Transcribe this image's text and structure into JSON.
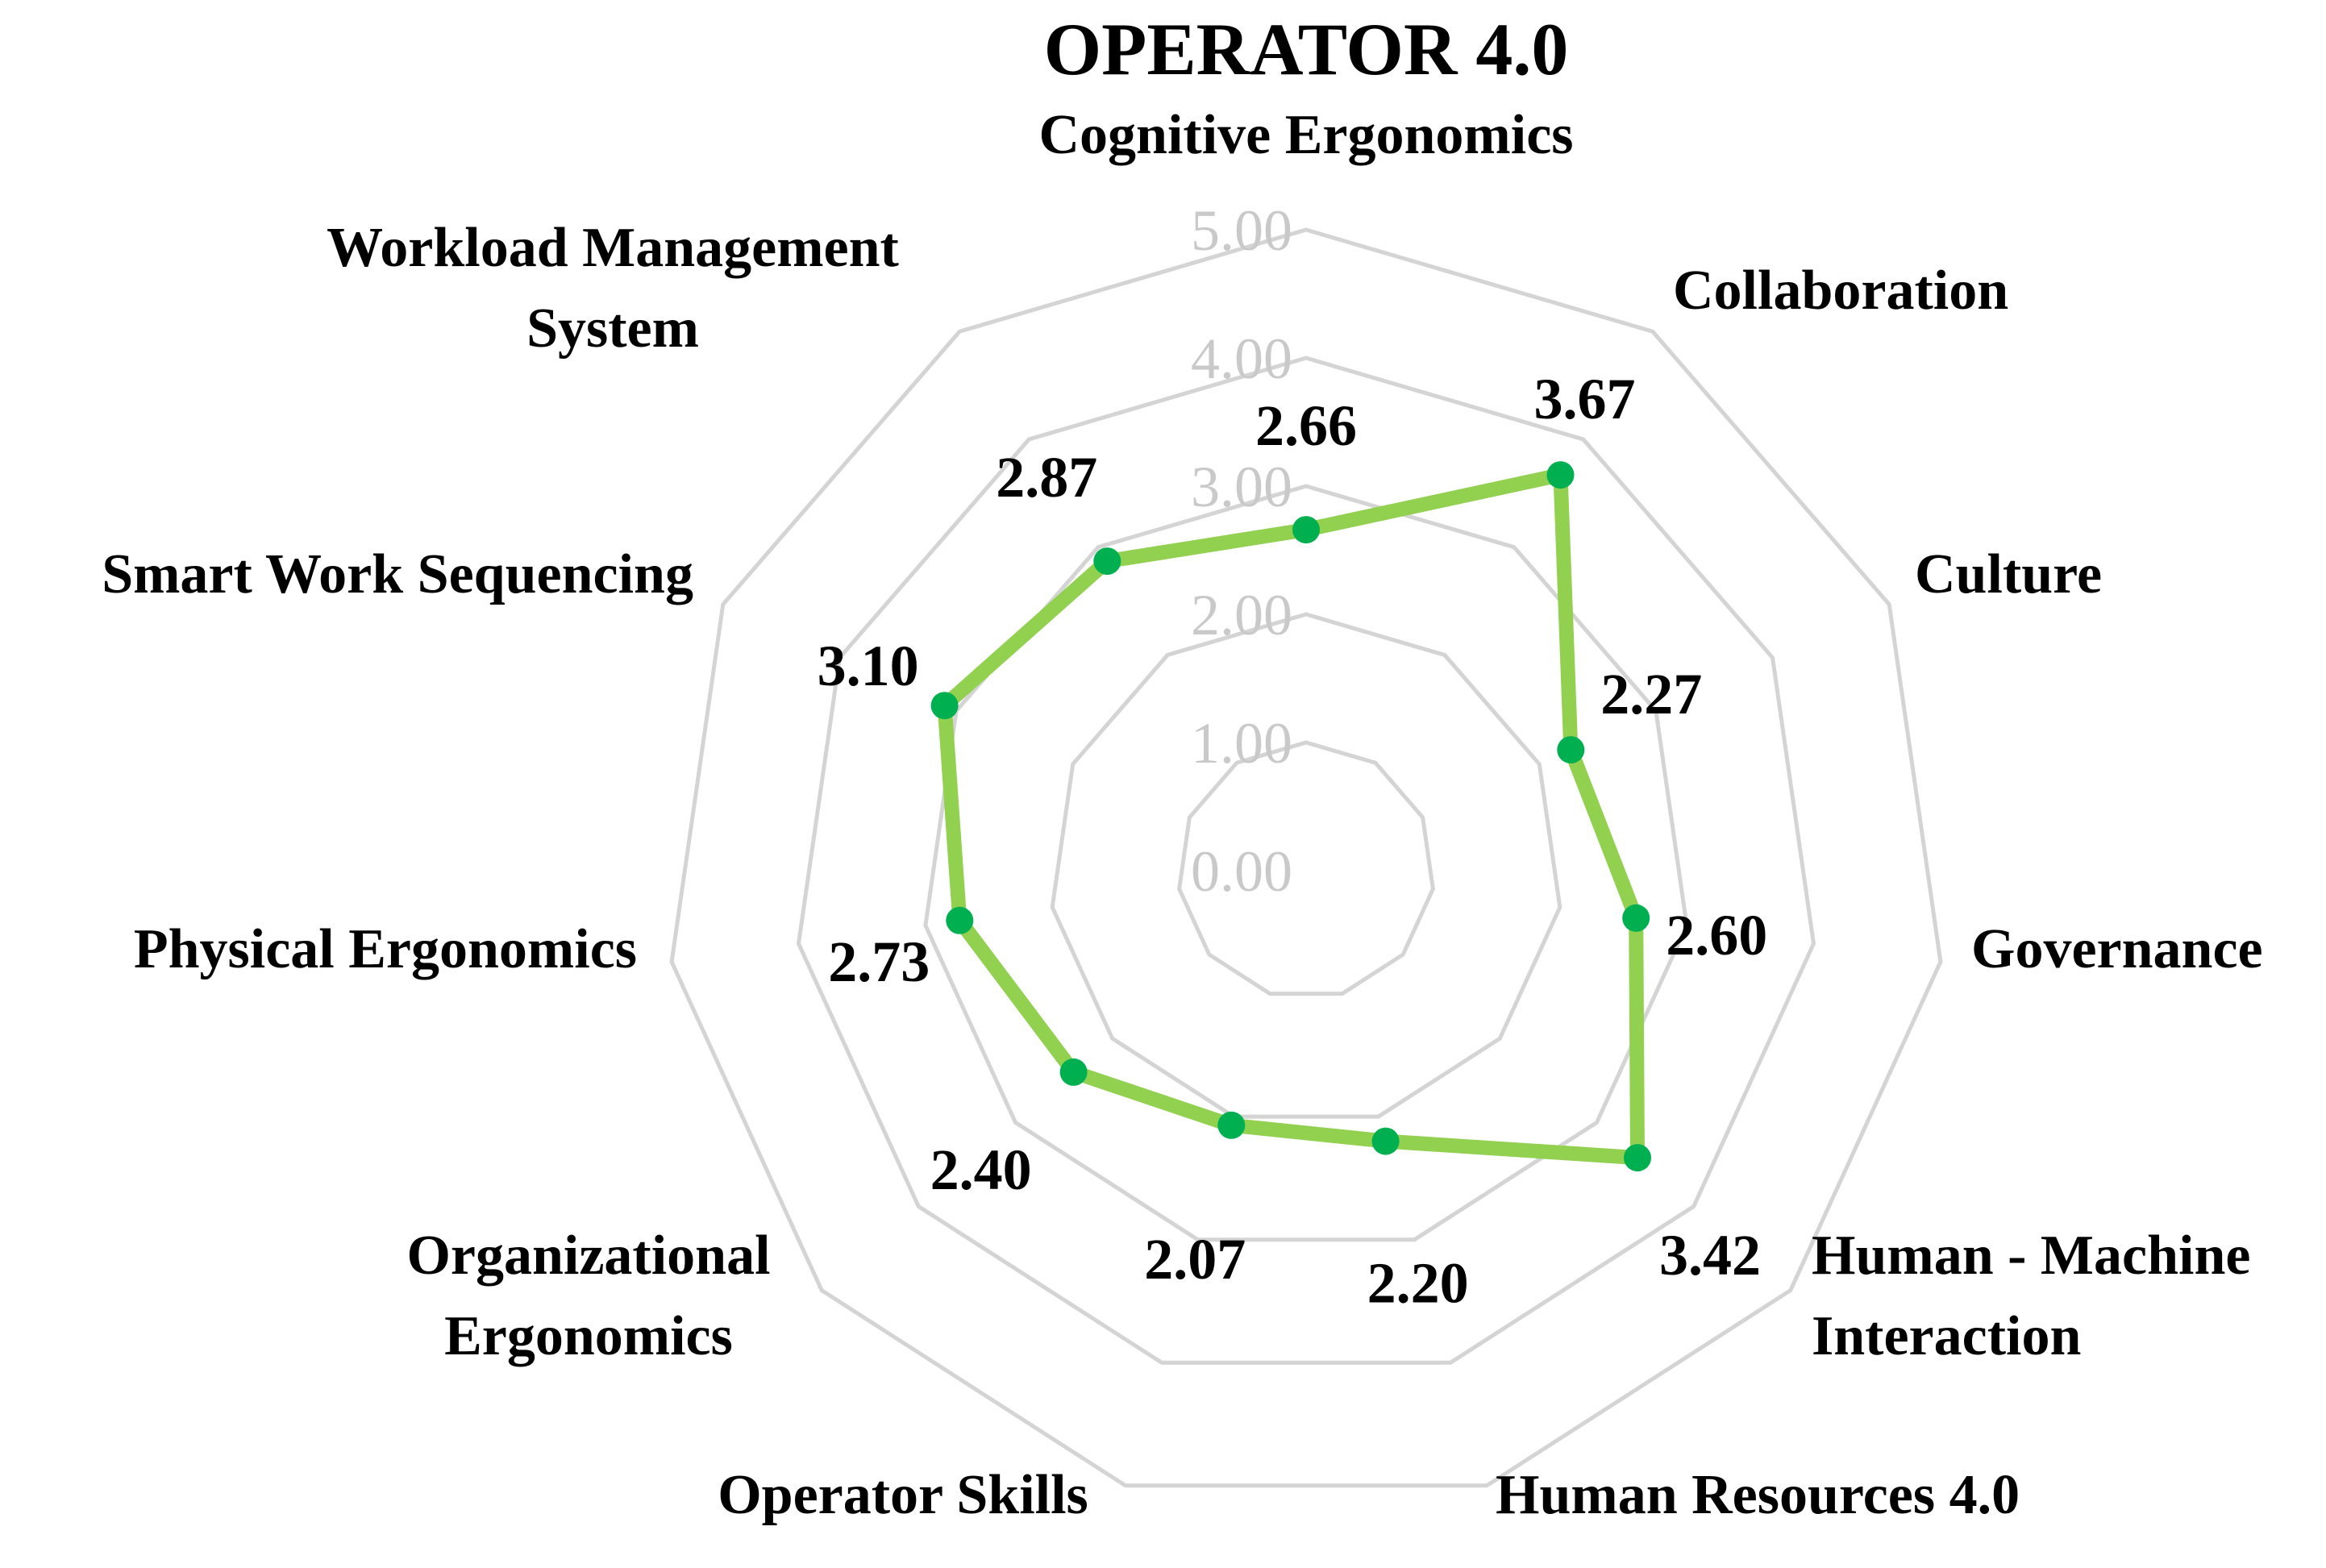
{
  "chart_data": {
    "type": "radar",
    "title": "OPERATOR 4.0",
    "categories": [
      [
        "Cognitive Ergonomics"
      ],
      [
        "Collaboration"
      ],
      [
        "Culture"
      ],
      [
        "Governance"
      ],
      [
        "Human - Machine",
        "Interaction"
      ],
      [
        "Human Resources 4.0"
      ],
      [
        "Operator Skills"
      ],
      [
        "Organizational",
        "Ergonomics"
      ],
      [
        "Physical Ergonomics"
      ],
      [
        "Smart Work Sequencing"
      ],
      [
        "Workload Management",
        "System"
      ]
    ],
    "series": [
      {
        "values": [
          2.66,
          3.67,
          2.27,
          2.6,
          3.42,
          2.2,
          2.07,
          2.4,
          2.73,
          3.1,
          2.87
        ]
      }
    ],
    "data_labels": [
      "2.66",
      "3.67",
      "2.27",
      "2.60",
      "3.42",
      "2.20",
      "2.07",
      "2.40",
      "2.73",
      "3.10",
      "2.87"
    ],
    "r_ticks": [
      "0.00",
      "1.00",
      "2.00",
      "3.00",
      "4.00",
      "5.00"
    ],
    "r_range": [
      0,
      5
    ],
    "grid": true,
    "colors": {
      "line": "#92d050",
      "markers": "#00b050",
      "grid": "#d4d4d4",
      "tick_labels": "#c9c9c9"
    }
  }
}
